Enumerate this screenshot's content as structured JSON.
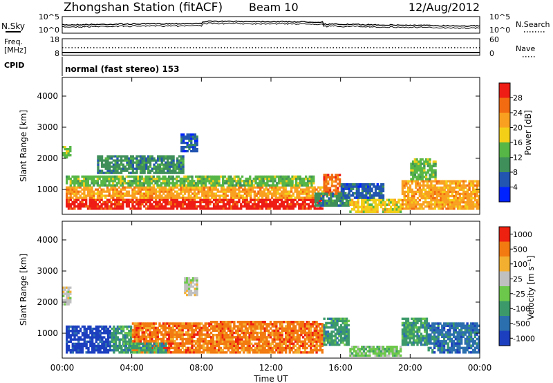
{
  "header": {
    "station": "Zhongshan Station (fitACF)",
    "beam": "Beam 10",
    "date": "12/Aug/2012"
  },
  "chart_data": [
    {
      "type": "line",
      "name": "noise-panel",
      "left_label": "N.Sky",
      "right_label": "N.Search",
      "left_ticks": [
        "10^5",
        "10^0"
      ],
      "right_ticks": [
        "10^5",
        "10^0"
      ]
    },
    {
      "type": "line",
      "name": "freq-panel",
      "left_label_line1": "Freq.",
      "left_label_line2": "[MHz]",
      "left_ticks": [
        "18",
        "8"
      ],
      "right_label": "Nave",
      "right_ticks": [
        "60",
        "0"
      ]
    },
    {
      "type": "heatmap",
      "name": "power",
      "cpid_label": "CPID",
      "cpid_text": "normal (fast stereo) 153",
      "ylabel": "Slant Range [km]",
      "yticks": [
        1000,
        2000,
        3000,
        4000
      ],
      "ylim": [
        200,
        4600
      ],
      "colorbar_label": "Power [dB]",
      "colorbar_ticks": [
        "4",
        "8",
        "12",
        "16",
        "20",
        "24",
        "28"
      ],
      "colors": [
        "#0022ff",
        "#2255b0",
        "#3f8f5a",
        "#56b646",
        "#f3cf18",
        "#f9a021",
        "#f26b10",
        "#ee1c14"
      ],
      "blobs": [
        {
          "t0": 0.2,
          "t1": 15.0,
          "r0": 350,
          "r1": 700,
          "c": 7
        },
        {
          "t0": 0.2,
          "t1": 15.0,
          "r0": 700,
          "r1": 1100,
          "c": 5
        },
        {
          "t0": 0.2,
          "t1": 14.5,
          "r0": 1100,
          "r1": 1450,
          "c": 3
        },
        {
          "t0": 15.0,
          "t1": 16.0,
          "r0": 800,
          "r1": 1500,
          "c": 6
        },
        {
          "t0": 14.5,
          "t1": 16.5,
          "r0": 450,
          "r1": 900,
          "c": 2
        },
        {
          "t0": 16.5,
          "t1": 19.5,
          "r0": 250,
          "r1": 700,
          "c": 4
        },
        {
          "t0": 16.0,
          "t1": 18.5,
          "r0": 700,
          "r1": 1200,
          "c": 1
        },
        {
          "t0": 19.5,
          "t1": 24.0,
          "r0": 350,
          "r1": 1300,
          "c": 5
        },
        {
          "t0": 20.0,
          "t1": 21.5,
          "r0": 1300,
          "r1": 2000,
          "c": 3
        },
        {
          "t0": 0.0,
          "t1": 0.5,
          "r0": 2000,
          "r1": 2400,
          "c": 3
        },
        {
          "t0": 6.8,
          "t1": 7.8,
          "r0": 2200,
          "r1": 2800,
          "c": 1
        },
        {
          "t0": 2.0,
          "t1": 7.0,
          "r0": 1500,
          "r1": 2100,
          "c": 2
        }
      ]
    },
    {
      "type": "heatmap",
      "name": "velocity",
      "ylabel": "Slant Range [km]",
      "yticks": [
        1000,
        2000,
        3000,
        4000
      ],
      "ylim": [
        200,
        4600
      ],
      "colorbar_label": "Velocity [m s⁻¹]",
      "colorbar_ticks": [
        "1000",
        "500",
        "100",
        "25",
        "-25",
        "-100",
        "-500",
        "-1000"
      ],
      "colors": [
        "#1c3fbf",
        "#2c6fae",
        "#3c9a6a",
        "#6cc84a",
        "#c0c0c0",
        "#f3b030",
        "#f27a10",
        "#ee2010"
      ],
      "blobs": [
        {
          "t0": 0.2,
          "t1": 2.8,
          "r0": 350,
          "r1": 1250,
          "c": 0
        },
        {
          "t0": 2.8,
          "t1": 4.0,
          "r0": 350,
          "r1": 1250,
          "c": 2
        },
        {
          "t0": 4.0,
          "t1": 8.5,
          "r0": 350,
          "r1": 1350,
          "c": 6
        },
        {
          "t0": 8.5,
          "t1": 15.0,
          "r0": 350,
          "r1": 1400,
          "c": 6
        },
        {
          "t0": 3.5,
          "t1": 6.0,
          "r0": 350,
          "r1": 700,
          "c": 2
        },
        {
          "t0": 15.0,
          "t1": 16.5,
          "r0": 600,
          "r1": 1500,
          "c": 2
        },
        {
          "t0": 16.5,
          "t1": 19.5,
          "r0": 250,
          "r1": 600,
          "c": 3
        },
        {
          "t0": 19.5,
          "t1": 21.0,
          "r0": 600,
          "r1": 1500,
          "c": 2
        },
        {
          "t0": 21.0,
          "t1": 24.0,
          "r0": 350,
          "r1": 1350,
          "c": 1
        },
        {
          "t0": 0.0,
          "t1": 0.5,
          "r0": 1900,
          "r1": 2500,
          "c": 4
        },
        {
          "t0": 7.0,
          "t1": 7.8,
          "r0": 2200,
          "r1": 2800,
          "c": 4
        }
      ]
    }
  ],
  "time_axis": {
    "xlabel": "Time UT",
    "xticks": [
      "00:00",
      "04:00",
      "08:00",
      "12:00",
      "16:00",
      "20:00",
      "00:00"
    ],
    "xlim": [
      0,
      24
    ]
  }
}
